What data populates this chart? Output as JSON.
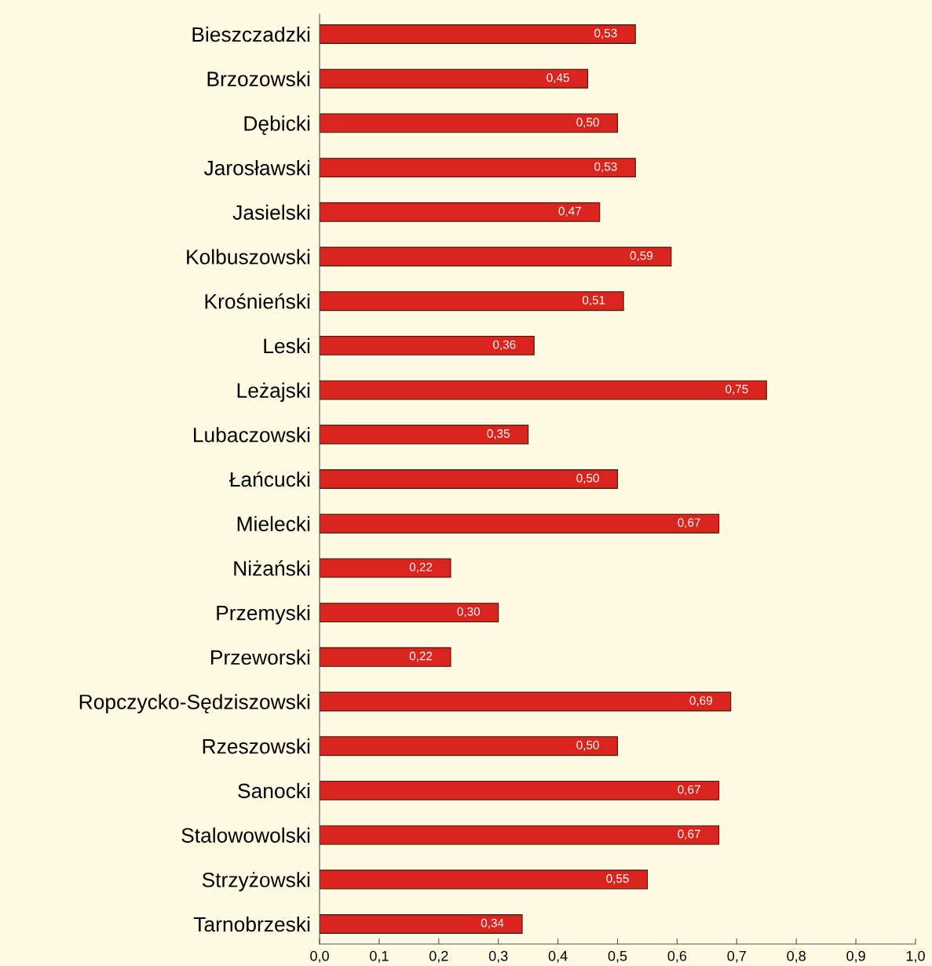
{
  "chart_data": {
    "type": "bar",
    "orientation": "horizontal",
    "categories": [
      "Bieszczadzki",
      "Brzozowski",
      "Dębicki",
      "Jarosławski",
      "Jasielski",
      "Kolbuszowski",
      "Krośnieński",
      "Leski",
      "Leżajski",
      "Lubaczowski",
      "Łańcucki",
      "Mielecki",
      "Niżański",
      "Przemyski",
      "Przeworski",
      "Ropczycko-Sędziszowski",
      "Rzeszowski",
      "Sanocki",
      "Stalowowolski",
      "Strzyżowski",
      "Tarnobrzeski"
    ],
    "values": [
      0.53,
      0.45,
      0.5,
      0.53,
      0.47,
      0.59,
      0.51,
      0.36,
      0.75,
      0.35,
      0.5,
      0.67,
      0.22,
      0.3,
      0.22,
      0.69,
      0.5,
      0.67,
      0.67,
      0.55,
      0.34
    ],
    "value_labels": [
      "0,53",
      "0,45",
      "0,50",
      "0,53",
      "0,47",
      "0,59",
      "0,51",
      "0,36",
      "0,75",
      "0,35",
      "0,50",
      "0,67",
      "0,22",
      "0,30",
      "0,22",
      "0,69",
      "0,50",
      "0,67",
      "0,67",
      "0,55",
      "0,34"
    ],
    "color": "#d9251d",
    "xlim": [
      0,
      1.0
    ],
    "xticks": [
      {
        "value": 0,
        "label": "0,0"
      },
      {
        "value": 0.1,
        "label": "0,1"
      },
      {
        "value": 0.2,
        "label": "0,2"
      },
      {
        "value": 0.3,
        "label": "0,3"
      },
      {
        "value": 0.4,
        "label": "0,4"
      },
      {
        "value": 0.5,
        "label": "0,5"
      },
      {
        "value": 0.6,
        "label": "0,6"
      },
      {
        "value": 0.7,
        "label": "0,7"
      },
      {
        "value": 0.8,
        "label": "0,8"
      },
      {
        "value": 0.9,
        "label": "0,9"
      },
      {
        "value": 1.0,
        "label": "1,0"
      }
    ],
    "grid": false,
    "legend": false
  }
}
